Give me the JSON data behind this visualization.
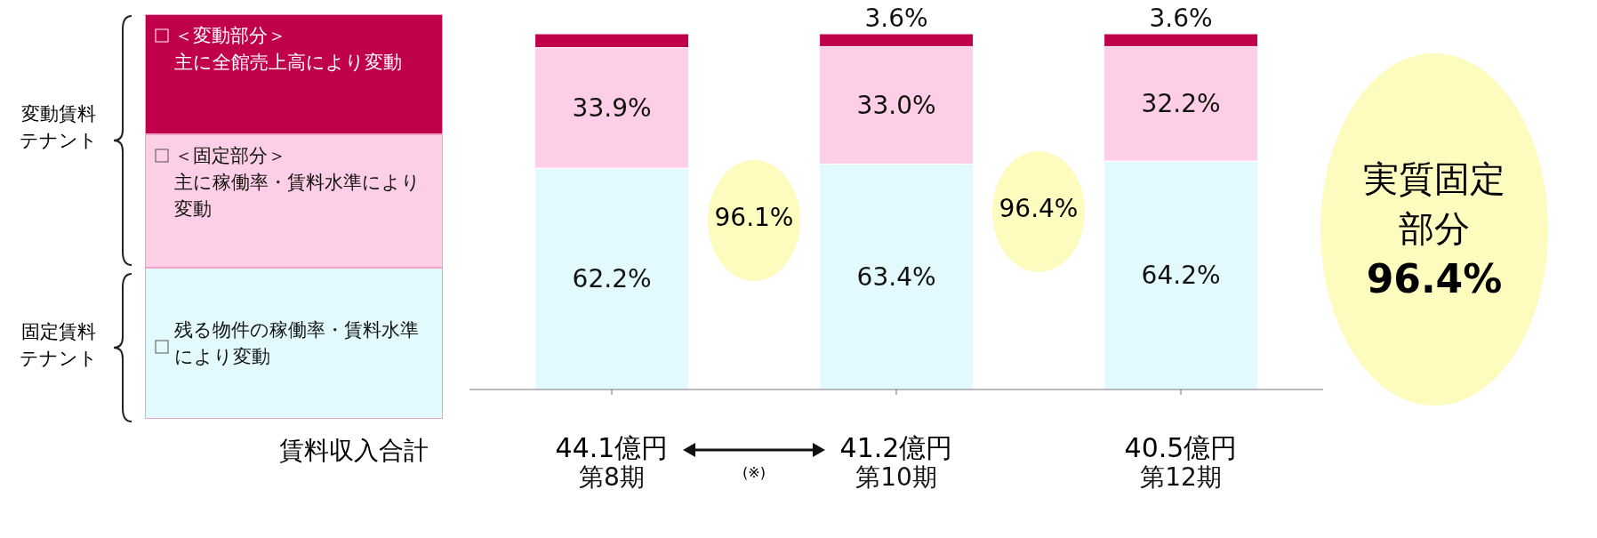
{
  "chart_data": {
    "type": "bar",
    "stacked": true,
    "categories": [
      "第8期",
      "第10期",
      "第12期"
    ],
    "series": [
      {
        "name": "残る物件の稼働率・賃料水準により変動",
        "color": "#e2fafd",
        "values": [
          62.2,
          63.4,
          64.2
        ],
        "value_labels": [
          "62.2%",
          "63.4%",
          "64.2%"
        ]
      },
      {
        "name": "＜固定部分＞主に稼働率・賃料水準により変動",
        "color": "#fdcfe6",
        "values": [
          33.9,
          33.0,
          32.2
        ],
        "value_labels": [
          "33.9%",
          "33.0%",
          "32.2%"
        ]
      },
      {
        "name": "＜変動部分＞主に全館売上高により変動",
        "color": "#c0004a",
        "values": [
          3.9,
          3.6,
          3.6
        ],
        "value_labels": [
          null,
          "3.6%",
          "3.6%"
        ]
      }
    ],
    "ylim": [
      0,
      100
    ],
    "legend": "left",
    "annotations": [
      "変動賃料テナント",
      "固定賃料テナント",
      "96.1%",
      "96.4%",
      "実質固定部分",
      "賃料収入合計",
      "44.1億円",
      "41.2億円",
      "40.5億円",
      "(※)",
      "96.4%"
    ]
  }
}
